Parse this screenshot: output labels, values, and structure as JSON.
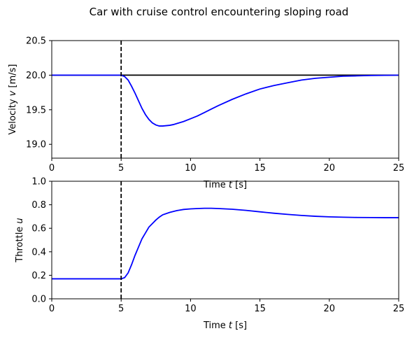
{
  "title": "Car with cruise control encountering sloping road",
  "colors": {
    "response": "#0000ff",
    "reference": "#000000",
    "event": "#000000"
  },
  "chart_data": [
    {
      "type": "line",
      "ylabel_text": "Velocity ",
      "ylabel_var": "v",
      "ylabel_unit": " [m/s]",
      "xlabel_text": "Time ",
      "xlabel_var": "t",
      "xlabel_unit": " [s]",
      "xlim": [
        0,
        25
      ],
      "ylim": [
        18.8,
        20.5
      ],
      "xticks": [
        0,
        5,
        10,
        15,
        20,
        25
      ],
      "yticks": [
        19.0,
        19.5,
        20.0,
        20.5
      ],
      "ytick_labels": [
        "19.0",
        "19.5",
        "20.0",
        "20.5"
      ],
      "reference_line": 20.0,
      "event_line_x": 5,
      "series": [
        {
          "x": [
            0,
            5,
            5.25,
            5.5,
            5.75,
            6,
            6.25,
            6.5,
            6.75,
            7,
            7.25,
            7.5,
            7.75,
            8,
            8.25,
            8.5,
            8.75,
            9,
            9.5,
            10,
            10.5,
            11,
            11.5,
            12,
            13,
            14,
            15,
            16,
            17,
            18,
            19,
            20,
            21,
            22,
            23,
            24,
            25
          ],
          "y": [
            20.0,
            20.0,
            19.98,
            19.93,
            19.84,
            19.74,
            19.63,
            19.52,
            19.43,
            19.36,
            19.31,
            19.28,
            19.265,
            19.265,
            19.27,
            19.275,
            19.285,
            19.3,
            19.33,
            19.37,
            19.41,
            19.46,
            19.51,
            19.56,
            19.65,
            19.73,
            19.8,
            19.85,
            19.89,
            19.93,
            19.955,
            19.97,
            19.985,
            19.99,
            19.995,
            19.998,
            20.0
          ]
        }
      ]
    },
    {
      "type": "line",
      "ylabel_text": "Throttle ",
      "ylabel_var": "u",
      "ylabel_unit": "",
      "xlabel_text": "Time ",
      "xlabel_var": "t",
      "xlabel_unit": " [s]",
      "xlim": [
        0,
        25
      ],
      "ylim": [
        0.0,
        1.0
      ],
      "xticks": [
        0,
        5,
        10,
        15,
        20,
        25
      ],
      "yticks": [
        0.0,
        0.2,
        0.4,
        0.6,
        0.8,
        1.0
      ],
      "ytick_labels": [
        "0.0",
        "0.2",
        "0.4",
        "0.6",
        "0.8",
        "1.0"
      ],
      "event_line_x": 5,
      "series": [
        {
          "x": [
            0,
            5,
            5.25,
            5.5,
            5.75,
            6,
            6.25,
            6.5,
            6.75,
            7,
            7.25,
            7.5,
            7.75,
            8,
            8.5,
            9,
            9.5,
            10,
            10.5,
            11,
            11.5,
            12,
            13,
            14,
            15,
            16,
            17,
            18,
            19,
            20,
            21,
            22,
            23,
            24,
            25
          ],
          "y": [
            0.17,
            0.17,
            0.18,
            0.22,
            0.29,
            0.37,
            0.44,
            0.51,
            0.56,
            0.61,
            0.64,
            0.67,
            0.695,
            0.715,
            0.735,
            0.75,
            0.76,
            0.765,
            0.768,
            0.77,
            0.77,
            0.768,
            0.762,
            0.752,
            0.74,
            0.728,
            0.718,
            0.709,
            0.702,
            0.697,
            0.694,
            0.692,
            0.691,
            0.69,
            0.69
          ]
        }
      ]
    }
  ]
}
